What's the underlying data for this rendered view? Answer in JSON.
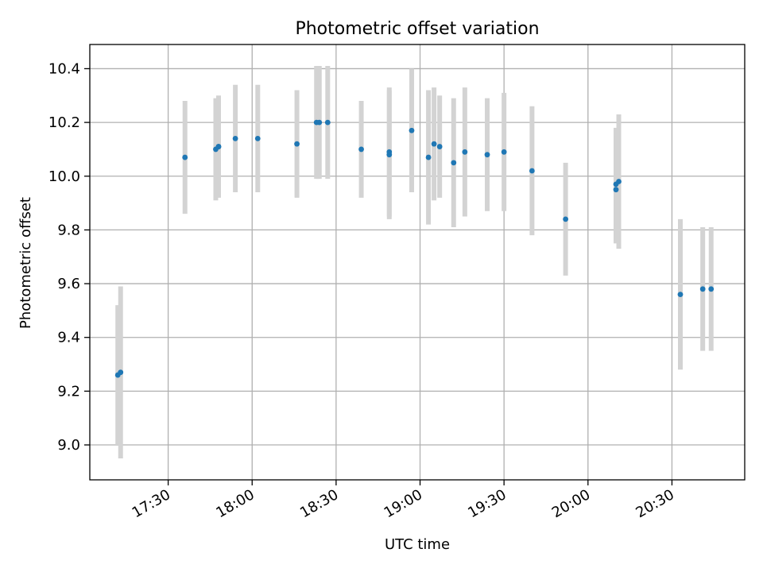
{
  "chart_data": {
    "type": "scatter",
    "title": "Photometric offset variation",
    "xlabel": "UTC time",
    "ylabel": "Photometric offset",
    "x_ticks": [
      "17:30",
      "18:00",
      "18:30",
      "19:00",
      "19:30",
      "20:00",
      "20:30"
    ],
    "y_ticks": [
      "9.0",
      "9.2",
      "9.4",
      "9.6",
      "9.8",
      "10.0",
      "10.2",
      "10.4"
    ],
    "xlim": [
      "17:02",
      "20:56"
    ],
    "ylim": [
      8.87,
      10.49
    ],
    "grid": true,
    "colors": {
      "point": "#1f77b4",
      "errorbar": "#d3d3d3"
    },
    "series": [
      {
        "points": [
          {
            "t": "17:12",
            "y": 9.26,
            "err": 0.26
          },
          {
            "t": "17:13",
            "y": 9.27,
            "err": 0.32
          },
          {
            "t": "17:36",
            "y": 10.07,
            "err": 0.21
          },
          {
            "t": "17:47",
            "y": 10.1,
            "err": 0.19
          },
          {
            "t": "17:48",
            "y": 10.11,
            "err": 0.19
          },
          {
            "t": "17:48",
            "y": 10.11,
            "err": 0.16
          },
          {
            "t": "17:54",
            "y": 10.14,
            "err": 0.2
          },
          {
            "t": "18:02",
            "y": 10.14,
            "err": 0.2
          },
          {
            "t": "18:16",
            "y": 10.12,
            "err": 0.2
          },
          {
            "t": "18:23",
            "y": 10.2,
            "err": 0.21
          },
          {
            "t": "18:24",
            "y": 10.2,
            "err": 0.21
          },
          {
            "t": "18:27",
            "y": 10.2,
            "err": 0.21
          },
          {
            "t": "18:39",
            "y": 10.1,
            "err": 0.18
          },
          {
            "t": "18:49",
            "y": 10.08,
            "err": 0.24
          },
          {
            "t": "18:49",
            "y": 10.09,
            "err": 0.24
          },
          {
            "t": "18:57",
            "y": 10.17,
            "err": 0.23
          },
          {
            "t": "19:03",
            "y": 10.07,
            "err": 0.25
          },
          {
            "t": "19:05",
            "y": 10.12,
            "err": 0.21
          },
          {
            "t": "19:07",
            "y": 10.11,
            "err": 0.19
          },
          {
            "t": "19:12",
            "y": 10.05,
            "err": 0.24
          },
          {
            "t": "19:16",
            "y": 10.09,
            "err": 0.24
          },
          {
            "t": "19:24",
            "y": 10.08,
            "err": 0.21
          },
          {
            "t": "19:30",
            "y": 10.09,
            "err": 0.22
          },
          {
            "t": "19:40",
            "y": 10.02,
            "err": 0.24
          },
          {
            "t": "19:52",
            "y": 9.84,
            "err": 0.21
          },
          {
            "t": "20:10",
            "y": 9.97,
            "err": 0.21
          },
          {
            "t": "20:10",
            "y": 9.95,
            "err": 0.2
          },
          {
            "t": "20:11",
            "y": 9.98,
            "err": 0.25
          },
          {
            "t": "20:33",
            "y": 9.56,
            "err": 0.28
          },
          {
            "t": "20:41",
            "y": 9.58,
            "err": 0.23
          },
          {
            "t": "20:44",
            "y": 9.58,
            "err": 0.23
          }
        ]
      }
    ]
  }
}
